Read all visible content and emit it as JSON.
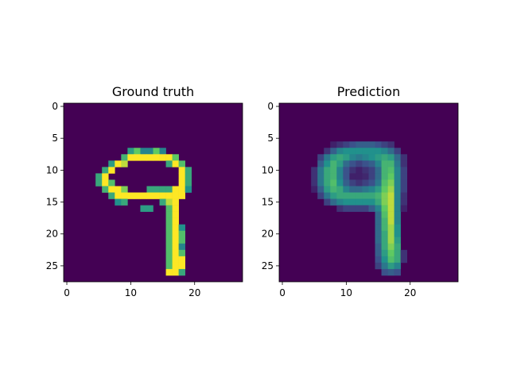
{
  "figure": {
    "background": "#ffffff"
  },
  "chart_data": [
    {
      "type": "heatmap",
      "title": "Ground truth",
      "xlabel": "",
      "ylabel": "",
      "grid": false,
      "rows": 28,
      "cols": 28,
      "xticks": [
        0,
        10,
        20
      ],
      "yticks": [
        0,
        5,
        10,
        15,
        20,
        25
      ],
      "colormap": "viridis",
      "value_range": [
        0,
        1
      ],
      "description_digit": "9",
      "cells": [
        [
          7,
          10,
          0.55
        ],
        [
          7,
          11,
          0.75
        ],
        [
          7,
          12,
          0.45
        ],
        [
          7,
          13,
          0.45
        ],
        [
          7,
          14,
          0.75
        ],
        [
          7,
          15,
          0.45
        ],
        [
          8,
          9,
          0.65
        ],
        [
          8,
          10,
          1
        ],
        [
          8,
          11,
          1
        ],
        [
          8,
          12,
          1
        ],
        [
          8,
          13,
          1
        ],
        [
          8,
          14,
          1
        ],
        [
          8,
          15,
          1
        ],
        [
          8,
          16,
          1
        ],
        [
          8,
          17,
          0.75
        ],
        [
          9,
          7,
          0.55
        ],
        [
          9,
          8,
          1
        ],
        [
          9,
          9,
          0.9
        ],
        [
          9,
          16,
          0.6
        ],
        [
          9,
          17,
          1
        ],
        [
          9,
          18,
          0.7
        ],
        [
          10,
          6,
          0.6
        ],
        [
          10,
          7,
          1
        ],
        [
          10,
          18,
          1
        ],
        [
          10,
          19,
          0.6
        ],
        [
          11,
          5,
          0.6
        ],
        [
          11,
          6,
          1
        ],
        [
          11,
          18,
          1
        ],
        [
          11,
          19,
          0.6
        ],
        [
          12,
          5,
          0.6
        ],
        [
          12,
          6,
          1
        ],
        [
          12,
          7,
          0.7
        ],
        [
          12,
          18,
          1
        ],
        [
          12,
          19,
          0.6
        ],
        [
          13,
          6,
          0.65
        ],
        [
          13,
          7,
          1
        ],
        [
          13,
          8,
          1
        ],
        [
          13,
          9,
          0.8
        ],
        [
          13,
          13,
          0.6
        ],
        [
          13,
          14,
          0.6
        ],
        [
          13,
          15,
          0.6
        ],
        [
          13,
          16,
          0.6
        ],
        [
          13,
          17,
          1
        ],
        [
          13,
          18,
          1
        ],
        [
          13,
          19,
          0.5
        ],
        [
          14,
          7,
          0.6
        ],
        [
          14,
          8,
          1
        ],
        [
          14,
          9,
          1
        ],
        [
          14,
          10,
          1
        ],
        [
          14,
          11,
          1
        ],
        [
          14,
          12,
          1
        ],
        [
          14,
          13,
          1
        ],
        [
          14,
          14,
          1
        ],
        [
          14,
          15,
          1
        ],
        [
          14,
          16,
          1
        ],
        [
          14,
          17,
          1
        ],
        [
          14,
          18,
          1
        ],
        [
          15,
          8,
          0.5
        ],
        [
          15,
          9,
          0.6
        ],
        [
          15,
          15,
          0.6
        ],
        [
          15,
          16,
          0.9
        ],
        [
          15,
          17,
          1
        ],
        [
          16,
          12,
          0.55
        ],
        [
          16,
          13,
          0.55
        ],
        [
          16,
          16,
          0.7
        ],
        [
          16,
          17,
          1
        ],
        [
          17,
          16,
          0.7
        ],
        [
          17,
          17,
          1
        ],
        [
          18,
          16,
          0.7
        ],
        [
          18,
          17,
          1
        ],
        [
          19,
          16,
          0.7
        ],
        [
          19,
          17,
          1
        ],
        [
          19,
          18,
          0.5
        ],
        [
          20,
          16,
          0.7
        ],
        [
          20,
          17,
          1
        ],
        [
          20,
          18,
          0.7
        ],
        [
          21,
          16,
          0.7
        ],
        [
          21,
          17,
          1
        ],
        [
          21,
          18,
          0.7
        ],
        [
          22,
          16,
          0.7
        ],
        [
          22,
          17,
          1
        ],
        [
          22,
          18,
          0.45
        ],
        [
          23,
          16,
          0.7
        ],
        [
          23,
          17,
          1
        ],
        [
          23,
          18,
          0.7
        ],
        [
          24,
          16,
          0.7
        ],
        [
          24,
          17,
          1
        ],
        [
          24,
          18,
          1
        ],
        [
          25,
          16,
          0.7
        ],
        [
          25,
          17,
          1
        ],
        [
          25,
          18,
          1
        ],
        [
          26,
          16,
          1
        ],
        [
          26,
          17,
          1
        ],
        [
          26,
          18,
          0.6
        ]
      ]
    },
    {
      "type": "heatmap",
      "title": "Prediction",
      "xlabel": "",
      "ylabel": "",
      "grid": false,
      "rows": 28,
      "cols": 28,
      "xticks": [
        0,
        10,
        20
      ],
      "yticks": [
        0,
        5,
        10,
        15,
        20,
        25
      ],
      "colormap": "viridis",
      "value_range": [
        0,
        1
      ],
      "description_digit": "9",
      "cells": [
        [
          6,
          8,
          0.1
        ],
        [
          6,
          9,
          0.15
        ],
        [
          6,
          10,
          0.2
        ],
        [
          6,
          11,
          0.25
        ],
        [
          6,
          12,
          0.3
        ],
        [
          6,
          13,
          0.3
        ],
        [
          6,
          14,
          0.3
        ],
        [
          6,
          15,
          0.25
        ],
        [
          6,
          16,
          0.2
        ],
        [
          6,
          17,
          0.15
        ],
        [
          7,
          7,
          0.15
        ],
        [
          7,
          8,
          0.3
        ],
        [
          7,
          9,
          0.45
        ],
        [
          7,
          10,
          0.5
        ],
        [
          7,
          11,
          0.5
        ],
        [
          7,
          12,
          0.5
        ],
        [
          7,
          13,
          0.5
        ],
        [
          7,
          14,
          0.5
        ],
        [
          7,
          15,
          0.5
        ],
        [
          7,
          16,
          0.45
        ],
        [
          7,
          17,
          0.35
        ],
        [
          7,
          18,
          0.2
        ],
        [
          8,
          6,
          0.2
        ],
        [
          8,
          7,
          0.4
        ],
        [
          8,
          8,
          0.55
        ],
        [
          8,
          9,
          0.6
        ],
        [
          8,
          10,
          0.55
        ],
        [
          8,
          11,
          0.45
        ],
        [
          8,
          12,
          0.4
        ],
        [
          8,
          13,
          0.45
        ],
        [
          8,
          14,
          0.5
        ],
        [
          8,
          15,
          0.55
        ],
        [
          8,
          16,
          0.6
        ],
        [
          8,
          17,
          0.55
        ],
        [
          8,
          18,
          0.35
        ],
        [
          8,
          19,
          0.15
        ],
        [
          9,
          6,
          0.3
        ],
        [
          9,
          7,
          0.5
        ],
        [
          9,
          8,
          0.65
        ],
        [
          9,
          9,
          0.55
        ],
        [
          9,
          10,
          0.35
        ],
        [
          9,
          11,
          0.25
        ],
        [
          9,
          12,
          0.2
        ],
        [
          9,
          13,
          0.25
        ],
        [
          9,
          14,
          0.3
        ],
        [
          9,
          15,
          0.45
        ],
        [
          9,
          16,
          0.65
        ],
        [
          9,
          17,
          0.65
        ],
        [
          9,
          18,
          0.4
        ],
        [
          9,
          19,
          0.15
        ],
        [
          10,
          5,
          0.15
        ],
        [
          10,
          6,
          0.4
        ],
        [
          10,
          7,
          0.6
        ],
        [
          10,
          8,
          0.65
        ],
        [
          10,
          9,
          0.45
        ],
        [
          10,
          10,
          0.25
        ],
        [
          10,
          11,
          0.15
        ],
        [
          10,
          12,
          0.1
        ],
        [
          10,
          13,
          0.15
        ],
        [
          10,
          14,
          0.2
        ],
        [
          10,
          15,
          0.35
        ],
        [
          10,
          16,
          0.65
        ],
        [
          10,
          17,
          0.7
        ],
        [
          10,
          18,
          0.45
        ],
        [
          10,
          19,
          0.2
        ],
        [
          11,
          5,
          0.15
        ],
        [
          11,
          6,
          0.4
        ],
        [
          11,
          7,
          0.6
        ],
        [
          11,
          8,
          0.65
        ],
        [
          11,
          9,
          0.45
        ],
        [
          11,
          10,
          0.25
        ],
        [
          11,
          11,
          0.1
        ],
        [
          11,
          12,
          0.1
        ],
        [
          11,
          13,
          0.12
        ],
        [
          11,
          14,
          0.2
        ],
        [
          11,
          15,
          0.35
        ],
        [
          11,
          16,
          0.65
        ],
        [
          11,
          17,
          0.75
        ],
        [
          11,
          18,
          0.45
        ],
        [
          11,
          19,
          0.2
        ],
        [
          12,
          5,
          0.15
        ],
        [
          12,
          6,
          0.4
        ],
        [
          12,
          7,
          0.6
        ],
        [
          12,
          8,
          0.7
        ],
        [
          12,
          9,
          0.5
        ],
        [
          12,
          10,
          0.3
        ],
        [
          12,
          11,
          0.2
        ],
        [
          12,
          12,
          0.15
        ],
        [
          12,
          13,
          0.2
        ],
        [
          12,
          14,
          0.25
        ],
        [
          12,
          15,
          0.4
        ],
        [
          12,
          16,
          0.7
        ],
        [
          12,
          17,
          0.8
        ],
        [
          12,
          18,
          0.45
        ],
        [
          12,
          19,
          0.2
        ],
        [
          13,
          5,
          0.1
        ],
        [
          13,
          6,
          0.3
        ],
        [
          13,
          7,
          0.55
        ],
        [
          13,
          8,
          0.65
        ],
        [
          13,
          9,
          0.6
        ],
        [
          13,
          10,
          0.45
        ],
        [
          13,
          11,
          0.35
        ],
        [
          13,
          12,
          0.35
        ],
        [
          13,
          13,
          0.4
        ],
        [
          13,
          14,
          0.45
        ],
        [
          13,
          15,
          0.55
        ],
        [
          13,
          16,
          0.75
        ],
        [
          13,
          17,
          0.85
        ],
        [
          13,
          18,
          0.45
        ],
        [
          13,
          19,
          0.2
        ],
        [
          14,
          6,
          0.2
        ],
        [
          14,
          7,
          0.4
        ],
        [
          14,
          8,
          0.55
        ],
        [
          14,
          9,
          0.6
        ],
        [
          14,
          10,
          0.6
        ],
        [
          14,
          11,
          0.6
        ],
        [
          14,
          12,
          0.6
        ],
        [
          14,
          13,
          0.6
        ],
        [
          14,
          14,
          0.6
        ],
        [
          14,
          15,
          0.65
        ],
        [
          14,
          16,
          0.8
        ],
        [
          14,
          17,
          0.9
        ],
        [
          14,
          18,
          0.45
        ],
        [
          14,
          19,
          0.15
        ],
        [
          15,
          7,
          0.2
        ],
        [
          15,
          8,
          0.35
        ],
        [
          15,
          9,
          0.45
        ],
        [
          15,
          10,
          0.5
        ],
        [
          15,
          11,
          0.5
        ],
        [
          15,
          12,
          0.5
        ],
        [
          15,
          13,
          0.5
        ],
        [
          15,
          14,
          0.5
        ],
        [
          15,
          15,
          0.6
        ],
        [
          15,
          16,
          0.8
        ],
        [
          15,
          17,
          0.9
        ],
        [
          15,
          18,
          0.45
        ],
        [
          15,
          19,
          0.15
        ],
        [
          16,
          9,
          0.15
        ],
        [
          16,
          10,
          0.2
        ],
        [
          16,
          11,
          0.2
        ],
        [
          16,
          12,
          0.2
        ],
        [
          16,
          13,
          0.2
        ],
        [
          16,
          14,
          0.3
        ],
        [
          16,
          15,
          0.45
        ],
        [
          16,
          16,
          0.75
        ],
        [
          16,
          17,
          0.9
        ],
        [
          16,
          18,
          0.45
        ],
        [
          16,
          19,
          0.1
        ],
        [
          17,
          15,
          0.35
        ],
        [
          17,
          16,
          0.7
        ],
        [
          17,
          17,
          0.9
        ],
        [
          17,
          18,
          0.45
        ],
        [
          18,
          15,
          0.35
        ],
        [
          18,
          16,
          0.65
        ],
        [
          18,
          17,
          0.9
        ],
        [
          18,
          18,
          0.45
        ],
        [
          19,
          15,
          0.35
        ],
        [
          19,
          16,
          0.65
        ],
        [
          19,
          17,
          0.85
        ],
        [
          19,
          18,
          0.5
        ],
        [
          20,
          15,
          0.35
        ],
        [
          20,
          16,
          0.6
        ],
        [
          20,
          17,
          0.85
        ],
        [
          20,
          18,
          0.5
        ],
        [
          21,
          15,
          0.35
        ],
        [
          21,
          16,
          0.6
        ],
        [
          21,
          17,
          0.85
        ],
        [
          21,
          18,
          0.55
        ],
        [
          22,
          15,
          0.3
        ],
        [
          22,
          16,
          0.6
        ],
        [
          22,
          17,
          0.8
        ],
        [
          22,
          18,
          0.6
        ],
        [
          23,
          15,
          0.3
        ],
        [
          23,
          16,
          0.55
        ],
        [
          23,
          17,
          0.75
        ],
        [
          23,
          18,
          0.6
        ],
        [
          23,
          19,
          0.15
        ],
        [
          24,
          15,
          0.25
        ],
        [
          24,
          16,
          0.5
        ],
        [
          24,
          17,
          0.7
        ],
        [
          24,
          18,
          0.6
        ],
        [
          24,
          19,
          0.15
        ],
        [
          25,
          15,
          0.2
        ],
        [
          25,
          16,
          0.4
        ],
        [
          25,
          17,
          0.55
        ],
        [
          25,
          18,
          0.45
        ],
        [
          26,
          16,
          0.25
        ],
        [
          26,
          17,
          0.3
        ],
        [
          26,
          18,
          0.25
        ]
      ]
    }
  ]
}
